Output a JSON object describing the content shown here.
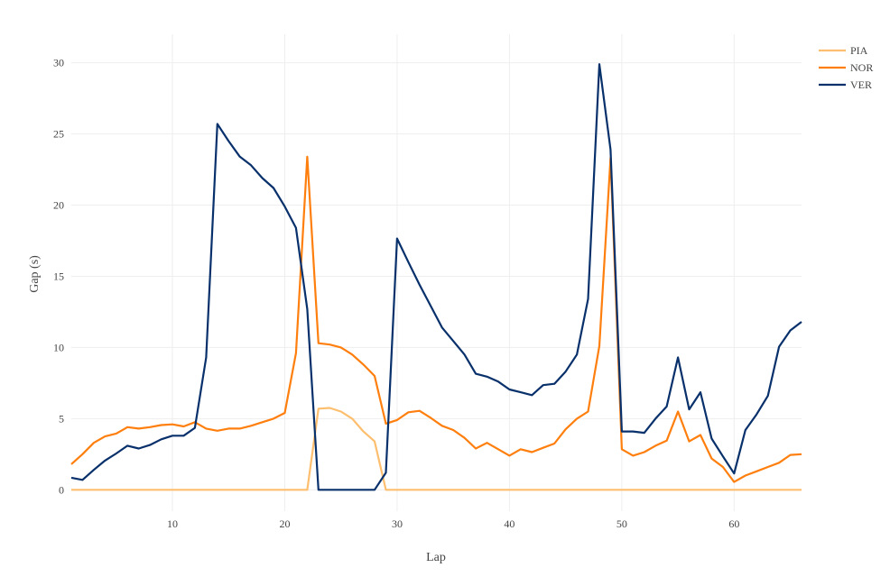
{
  "chart_data": {
    "type": "line",
    "title": "",
    "xlabel": "Lap",
    "ylabel": "Gap (s)",
    "xlim": [
      1,
      66
    ],
    "ylim": [
      -1.5,
      32
    ],
    "x_ticks": [
      10,
      20,
      30,
      40,
      50,
      60
    ],
    "y_ticks": [
      0,
      5,
      10,
      15,
      20,
      25,
      30
    ],
    "grid": true,
    "legend_position": "top-right",
    "x": [
      1,
      2,
      3,
      4,
      5,
      6,
      7,
      8,
      9,
      10,
      11,
      12,
      13,
      14,
      15,
      16,
      17,
      18,
      19,
      20,
      21,
      22,
      23,
      24,
      25,
      26,
      27,
      28,
      29,
      30,
      31,
      32,
      33,
      34,
      35,
      36,
      37,
      38,
      39,
      40,
      41,
      42,
      43,
      44,
      45,
      46,
      47,
      48,
      49,
      50,
      51,
      52,
      53,
      54,
      55,
      56,
      57,
      58,
      59,
      60,
      61,
      62,
      63,
      64,
      65,
      66
    ],
    "series": [
      {
        "name": "PIA",
        "color": "#fdbf6f",
        "values": [
          0,
          0,
          0,
          0,
          0,
          0,
          0,
          0,
          0,
          0,
          0,
          0,
          0,
          0,
          0,
          0,
          0,
          0,
          0,
          0,
          0,
          0,
          5.7,
          5.75,
          5.5,
          5.0,
          4.1,
          3.4,
          0,
          0,
          0,
          0,
          0,
          0,
          0,
          0,
          0,
          0,
          0,
          0,
          0,
          0,
          0,
          0,
          0,
          0,
          0,
          0,
          0,
          0,
          0,
          0,
          0,
          0,
          0,
          0,
          0,
          0,
          0,
          0,
          0,
          0,
          0,
          0,
          0,
          0
        ]
      },
      {
        "name": "NOR",
        "color": "#ff7f0e",
        "values": [
          1.8,
          2.5,
          3.3,
          3.75,
          3.95,
          4.4,
          4.3,
          4.4,
          4.55,
          4.6,
          4.45,
          4.75,
          4.3,
          4.15,
          4.3,
          4.3,
          4.5,
          4.75,
          5.0,
          5.4,
          9.6,
          23.4,
          10.3,
          10.2,
          10.0,
          9.5,
          8.8,
          8.0,
          4.65,
          4.9,
          5.45,
          5.55,
          5.05,
          4.5,
          4.2,
          3.65,
          2.9,
          3.3,
          2.85,
          2.4,
          2.85,
          2.65,
          2.95,
          3.25,
          4.25,
          5.0,
          5.5,
          10.1,
          23.3,
          2.85,
          2.4,
          2.65,
          3.1,
          3.45,
          5.5,
          3.4,
          3.85,
          2.2,
          1.6,
          0.55,
          1.0,
          1.3,
          1.6,
          1.9,
          2.45,
          2.5
        ]
      },
      {
        "name": "VER",
        "color": "#08306b",
        "values": [
          0.85,
          0.7,
          1.4,
          2.05,
          2.55,
          3.1,
          2.9,
          3.15,
          3.55,
          3.8,
          3.8,
          4.35,
          9.3,
          25.7,
          24.5,
          23.4,
          22.8,
          21.9,
          21.2,
          19.9,
          18.4,
          12.7,
          0,
          0,
          0,
          0,
          0,
          0,
          1.2,
          17.65,
          16.0,
          14.4,
          12.9,
          11.4,
          10.45,
          9.5,
          8.15,
          7.95,
          7.6,
          7.05,
          6.85,
          6.65,
          7.35,
          7.45,
          8.3,
          9.5,
          13.4,
          29.9,
          23.9,
          4.1,
          4.1,
          4.0,
          5.0,
          5.85,
          9.3,
          5.65,
          6.85,
          3.6,
          2.35,
          1.15,
          4.2,
          5.3,
          6.6,
          10.05,
          11.2,
          11.8
        ]
      }
    ]
  }
}
